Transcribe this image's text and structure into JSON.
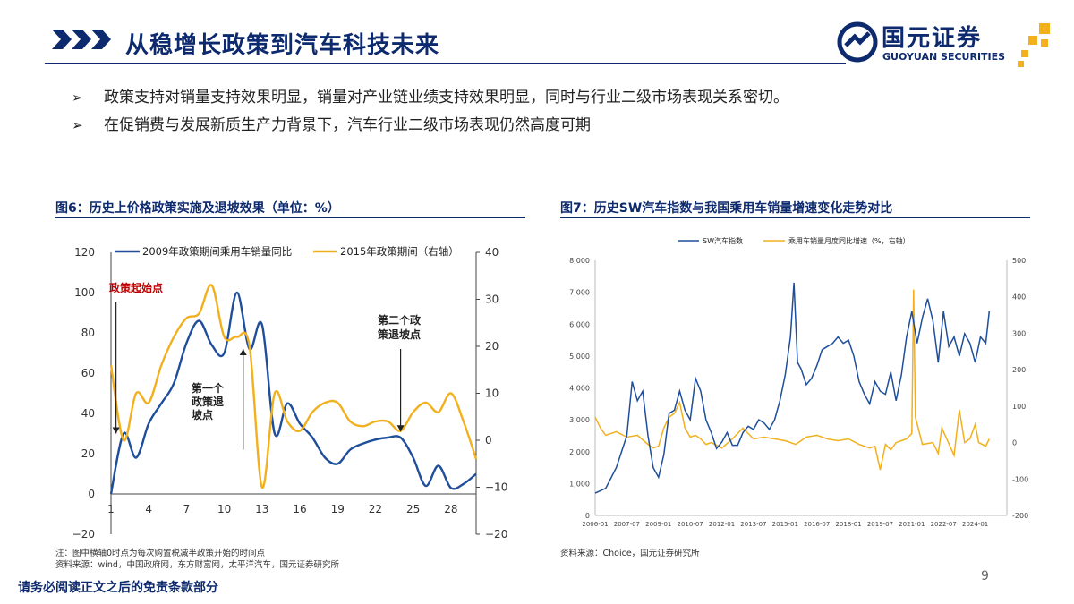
{
  "header": {
    "title": "从稳增长政策到汽车科技未来",
    "logo_cn": "国元证券",
    "logo_en": "GUOYUAN SECURITIES"
  },
  "bullets": [
    "政策支持对销量支持效果明显，销量对产业链业绩支持效果明显，同时与行业二级市场表现关系密切。",
    "在促销费与发展新质生产力背景下，汽车行业二级市场表现仍然高度可期"
  ],
  "figure6": {
    "title": "图6：历史上价格政策实施及退坡效果（单位：%）",
    "note": "注：图中横轴0时点为每次购置税减半政策开始的时间点",
    "source": "资料来源：wind，中国政府网，东方财富网，太平洋汽车，国元证券研究所"
  },
  "figure7": {
    "title": "图7：历史SW汽车指数与我国乘用车销量增速变化走势对比",
    "source": "资料来源：Choice，国元证券研究所"
  },
  "colors": {
    "blue": "#1f4e9b",
    "gold": "#f2b01e",
    "red": "#c00000",
    "navy": "#0d2a6e"
  },
  "chart_data": [
    {
      "type": "line",
      "x": [
        1,
        2,
        3,
        4,
        5,
        6,
        7,
        8,
        9,
        10,
        11,
        12,
        13,
        14,
        15,
        16,
        17,
        18,
        19,
        20,
        21,
        22,
        23,
        24,
        25,
        26,
        27,
        28,
        29,
        30
      ],
      "x_ticks": [
        "1",
        "4",
        "7",
        "10",
        "13",
        "16",
        "19",
        "22",
        "25",
        "28"
      ],
      "series": [
        {
          "name": "2009年政策期间乘用车销量同比",
          "axis": "left",
          "values": [
            0,
            30,
            18,
            35,
            45,
            55,
            75,
            86,
            74,
            70,
            100,
            72,
            84,
            30,
            45,
            35,
            28,
            18,
            15,
            22,
            25,
            27,
            28,
            28,
            18,
            4,
            14,
            3,
            5,
            10
          ]
        },
        {
          "name": "2015年政策期间（右轴）",
          "axis": "right",
          "values": [
            16,
            0,
            10,
            8,
            16,
            22,
            26,
            27,
            33,
            22,
            22,
            20,
            -10,
            10,
            4,
            2,
            6,
            8,
            8,
            4,
            3,
            4,
            4,
            2,
            6,
            8,
            6,
            10,
            4,
            -4
          ]
        }
      ],
      "ylim": [
        -20,
        120
      ],
      "yticks": [
        "120",
        "100",
        "80",
        "60",
        "40",
        "20",
        "0",
        "−20"
      ],
      "y2lim": [
        -20,
        40
      ],
      "y2ticks": [
        "40",
        "30",
        "20",
        "10",
        "0",
        "−10",
        "−20"
      ],
      "annotations": [
        "政策起始点",
        "第一个政策退坡点",
        "第二个政策退坡点"
      ],
      "annotation_lines": {
        "first": [
          "第一个",
          "政策退",
          "坡点"
        ],
        "second": [
          "第二个政",
          "策退坡点"
        ]
      },
      "legend_position": "top"
    },
    {
      "type": "line",
      "x_ticks": [
        "2006-01",
        "2007-07",
        "2009-01",
        "2010-07",
        "2012-01",
        "2013-07",
        "2015-01",
        "2016-07",
        "2018-01",
        "2019-07",
        "2021-01",
        "2022-07",
        "2024-01"
      ],
      "series": [
        {
          "name": "SW汽车指数",
          "axis": "left",
          "points": [
            [
              "2006-01",
              700
            ],
            [
              "2006-07",
              850
            ],
            [
              "2007-01",
              1500
            ],
            [
              "2007-07",
              2500
            ],
            [
              "2007-10",
              4200
            ],
            [
              "2008-01",
              3600
            ],
            [
              "2008-04",
              3900
            ],
            [
              "2008-07",
              2500
            ],
            [
              "2008-10",
              1500
            ],
            [
              "2009-01",
              1200
            ],
            [
              "2009-04",
              1900
            ],
            [
              "2009-07",
              3200
            ],
            [
              "2009-10",
              3300
            ],
            [
              "2010-01",
              3900
            ],
            [
              "2010-04",
              3300
            ],
            [
              "2010-07",
              3000
            ],
            [
              "2010-10",
              4300
            ],
            [
              "2011-01",
              3900
            ],
            [
              "2011-04",
              3000
            ],
            [
              "2011-07",
              2600
            ],
            [
              "2011-10",
              2100
            ],
            [
              "2012-01",
              2300
            ],
            [
              "2012-04",
              2600
            ],
            [
              "2012-07",
              2200
            ],
            [
              "2012-10",
              2200
            ],
            [
              "2013-01",
              2600
            ],
            [
              "2013-04",
              2800
            ],
            [
              "2013-07",
              2700
            ],
            [
              "2013-10",
              3000
            ],
            [
              "2014-01",
              2900
            ],
            [
              "2014-04",
              2700
            ],
            [
              "2014-07",
              3000
            ],
            [
              "2014-10",
              3600
            ],
            [
              "2015-01",
              4400
            ],
            [
              "2015-04",
              5600
            ],
            [
              "2015-06",
              7300
            ],
            [
              "2015-08",
              4800
            ],
            [
              "2015-10",
              4600
            ],
            [
              "2016-01",
              4100
            ],
            [
              "2016-04",
              4300
            ],
            [
              "2016-07",
              4700
            ],
            [
              "2016-10",
              5200
            ],
            [
              "2017-01",
              5300
            ],
            [
              "2017-04",
              5400
            ],
            [
              "2017-07",
              5600
            ],
            [
              "2017-10",
              5400
            ],
            [
              "2018-01",
              5500
            ],
            [
              "2018-04",
              5000
            ],
            [
              "2018-07",
              4200
            ],
            [
              "2018-10",
              3800
            ],
            [
              "2019-01",
              3500
            ],
            [
              "2019-04",
              4200
            ],
            [
              "2019-07",
              3900
            ],
            [
              "2019-10",
              3800
            ],
            [
              "2020-01",
              4500
            ],
            [
              "2020-04",
              3600
            ],
            [
              "2020-07",
              4400
            ],
            [
              "2020-10",
              5600
            ],
            [
              "2021-01",
              6400
            ],
            [
              "2021-04",
              5400
            ],
            [
              "2021-07",
              6200
            ],
            [
              "2021-10",
              6800
            ],
            [
              "2022-01",
              6100
            ],
            [
              "2022-04",
              4800
            ],
            [
              "2022-07",
              6400
            ],
            [
              "2022-10",
              5300
            ],
            [
              "2023-01",
              5600
            ],
            [
              "2023-04",
              5000
            ],
            [
              "2023-07",
              5700
            ],
            [
              "2023-10",
              5400
            ],
            [
              "2024-01",
              4800
            ],
            [
              "2024-04",
              5600
            ],
            [
              "2024-07",
              5400
            ],
            [
              "2024-09",
              6400
            ]
          ]
        },
        {
          "name": "乘用车销量月度同比增速（%，右轴）",
          "axis": "right",
          "points": [
            [
              "2006-01",
              70
            ],
            [
              "2006-04",
              40
            ],
            [
              "2006-07",
              20
            ],
            [
              "2006-10",
              25
            ],
            [
              "2007-01",
              30
            ],
            [
              "2007-07",
              15
            ],
            [
              "2008-01",
              20
            ],
            [
              "2008-07",
              -5
            ],
            [
              "2008-10",
              -15
            ],
            [
              "2009-01",
              -10
            ],
            [
              "2009-04",
              40
            ],
            [
              "2009-07",
              70
            ],
            [
              "2009-10",
              80
            ],
            [
              "2010-01",
              110
            ],
            [
              "2010-04",
              40
            ],
            [
              "2010-07",
              15
            ],
            [
              "2010-10",
              20
            ],
            [
              "2011-01",
              10
            ],
            [
              "2011-04",
              -5
            ],
            [
              "2011-07",
              0
            ],
            [
              "2012-01",
              -15
            ],
            [
              "2012-07",
              10
            ],
            [
              "2013-01",
              40
            ],
            [
              "2013-07",
              10
            ],
            [
              "2014-01",
              15
            ],
            [
              "2014-07",
              10
            ],
            [
              "2015-01",
              5
            ],
            [
              "2015-07",
              -5
            ],
            [
              "2016-01",
              15
            ],
            [
              "2016-07",
              20
            ],
            [
              "2017-01",
              10
            ],
            [
              "2017-07",
              5
            ],
            [
              "2018-01",
              10
            ],
            [
              "2018-07",
              -5
            ],
            [
              "2019-01",
              -15
            ],
            [
              "2019-04",
              -10
            ],
            [
              "2019-07",
              -75
            ],
            [
              "2019-10",
              -5
            ],
            [
              "2020-01",
              -20
            ],
            [
              "2020-04",
              0
            ],
            [
              "2020-07",
              5
            ],
            [
              "2020-10",
              10
            ],
            [
              "2020-12",
              20
            ],
            [
              "2021-01",
              25
            ],
            [
              "2021-02",
              420
            ],
            [
              "2021-03",
              70
            ],
            [
              "2021-07",
              -5
            ],
            [
              "2022-01",
              0
            ],
            [
              "2022-04",
              -30
            ],
            [
              "2022-06",
              40
            ],
            [
              "2022-07",
              30
            ],
            [
              "2023-01",
              -35
            ],
            [
              "2023-04",
              90
            ],
            [
              "2023-07",
              0
            ],
            [
              "2023-10",
              10
            ],
            [
              "2024-01",
              50
            ],
            [
              "2024-03",
              0
            ],
            [
              "2024-07",
              -10
            ],
            [
              "2024-09",
              10
            ]
          ]
        }
      ],
      "ylim": [
        0,
        8000
      ],
      "yticks": [
        "8,000",
        "7,000",
        "6,000",
        "5,000",
        "4,000",
        "3,000",
        "2,000",
        "1,000",
        "0"
      ],
      "y2lim": [
        -200,
        500
      ],
      "y2ticks": [
        "500",
        "400",
        "300",
        "200",
        "100",
        "0",
        "-100",
        "-200"
      ],
      "legend_position": "top"
    }
  ]
}
